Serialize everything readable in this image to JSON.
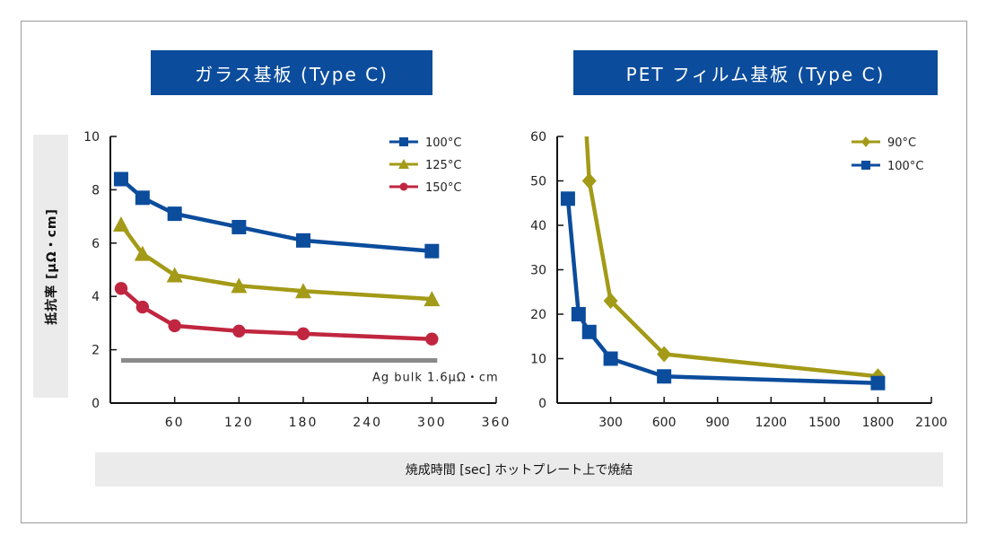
{
  "ylabel": "抵抗率 [μΩ・cm]",
  "xlabel": "焼成時間 [sec] ホットプレート上で焼結",
  "colors": {
    "blue": "#0b4c9c",
    "olive": "#a39a17",
    "red": "#c0263f",
    "gray": "#8a8a8a"
  },
  "chart_data": [
    {
      "type": "line",
      "title": "ガラス基板 (Type C)",
      "xlim": [
        0,
        360
      ],
      "ylim": [
        0,
        10
      ],
      "xticks": [
        "60",
        "120",
        "180",
        "240",
        "300",
        "360"
      ],
      "yticks": [
        "0",
        "2",
        "4",
        "6",
        "8",
        "10"
      ],
      "legend_position": "top-right",
      "series": [
        {
          "name": "100°C",
          "marker": "square",
          "color": "#0b4c9c",
          "x": [
            10,
            30,
            60,
            120,
            180,
            300
          ],
          "y": [
            8.4,
            7.7,
            7.1,
            6.6,
            6.1,
            5.7
          ]
        },
        {
          "name": "125°C",
          "marker": "triangle",
          "color": "#a39a17",
          "x": [
            10,
            30,
            60,
            120,
            180,
            300
          ],
          "y": [
            6.7,
            5.6,
            4.8,
            4.4,
            4.2,
            3.9
          ]
        },
        {
          "name": "150°C",
          "marker": "circle",
          "color": "#c0263f",
          "x": [
            10,
            30,
            60,
            120,
            180,
            300
          ],
          "y": [
            4.3,
            3.6,
            2.9,
            2.7,
            2.6,
            2.4
          ]
        }
      ],
      "reference_line": {
        "label": "Ag bulk 1.6μΩ・cm",
        "y": 1.6,
        "x": [
          10,
          305
        ]
      }
    },
    {
      "type": "line",
      "title": "PET フィルム基板 (Type C)",
      "xlim": [
        0,
        2100
      ],
      "ylim": [
        0,
        60
      ],
      "xticks": [
        "300",
        "600",
        "900",
        "1200",
        "1500",
        "1800",
        "2100"
      ],
      "yticks": [
        "0",
        "10",
        "20",
        "30",
        "40",
        "50",
        "60"
      ],
      "legend_position": "top-right",
      "series": [
        {
          "name": "90°C",
          "marker": "diamond",
          "color": "#a39a17",
          "x": [
            165,
            180,
            300,
            600,
            1800
          ],
          "y": [
            60,
            50,
            23,
            11,
            6
          ]
        },
        {
          "name": "100°C",
          "marker": "square",
          "color": "#0b4c9c",
          "x": [
            60,
            120,
            180,
            300,
            600,
            1800
          ],
          "y": [
            46,
            20,
            16,
            10,
            6,
            4.5
          ]
        }
      ]
    }
  ]
}
